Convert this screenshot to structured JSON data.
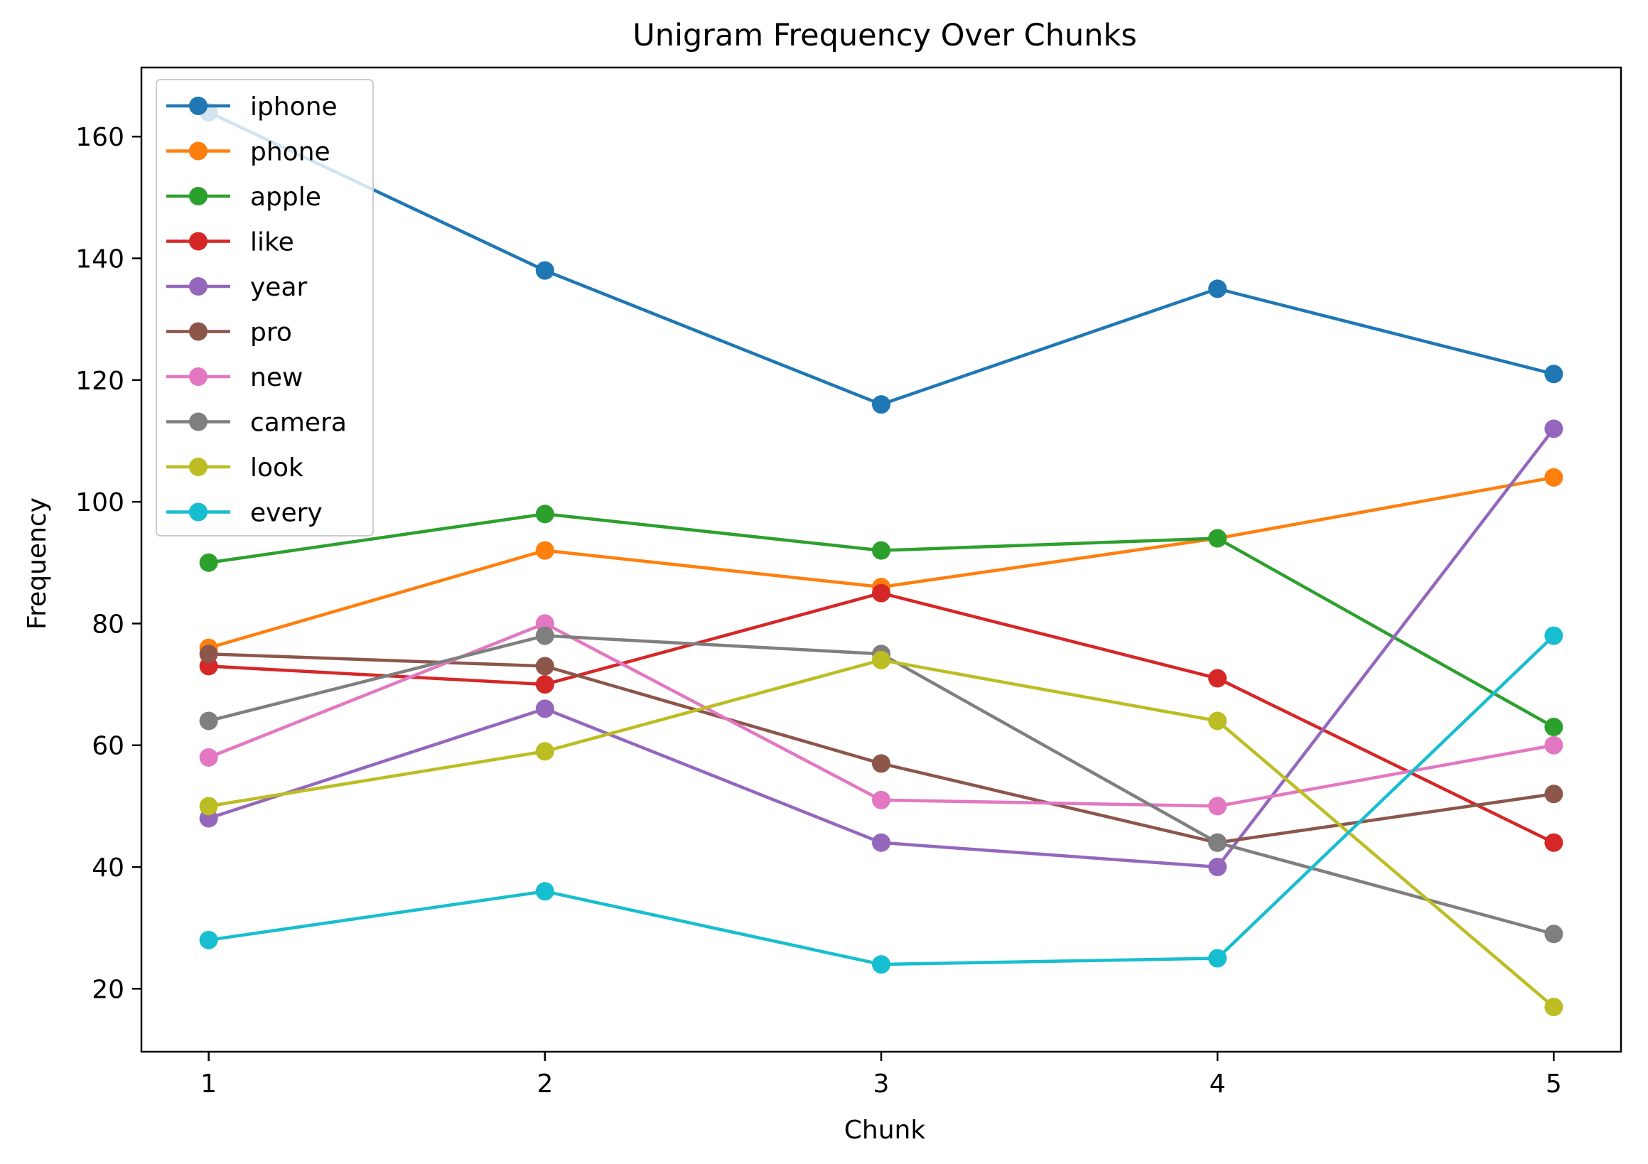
{
  "chart_data": {
    "type": "line",
    "title": "Unigram Frequency Over Chunks",
    "xlabel": "Chunk",
    "ylabel": "Frequency",
    "x": [
      1,
      2,
      3,
      4,
      5
    ],
    "xlim": [
      0.8,
      5.2
    ],
    "ylim": [
      9.65,
      171.35
    ],
    "yticks": [
      20,
      40,
      60,
      80,
      100,
      120,
      140,
      160
    ],
    "grid": false,
    "legend_position": "upper-left",
    "series": [
      {
        "name": "iphone",
        "color": "#1f77b4",
        "values": [
          164,
          138,
          116,
          135,
          121
        ]
      },
      {
        "name": "phone",
        "color": "#ff7f0e",
        "values": [
          76,
          92,
          86,
          94,
          104
        ]
      },
      {
        "name": "apple",
        "color": "#2ca02c",
        "values": [
          90,
          98,
          92,
          94,
          63
        ]
      },
      {
        "name": "like",
        "color": "#d62728",
        "values": [
          73,
          70,
          85,
          71,
          44
        ]
      },
      {
        "name": "year",
        "color": "#9467bd",
        "values": [
          48,
          66,
          44,
          40,
          112
        ]
      },
      {
        "name": "pro",
        "color": "#8c564b",
        "values": [
          75,
          73,
          57,
          44,
          52
        ]
      },
      {
        "name": "new",
        "color": "#e377c2",
        "values": [
          58,
          80,
          51,
          50,
          60
        ]
      },
      {
        "name": "camera",
        "color": "#7f7f7f",
        "values": [
          64,
          78,
          75,
          44,
          29
        ]
      },
      {
        "name": "look",
        "color": "#bcbd22",
        "values": [
          50,
          59,
          74,
          64,
          17
        ]
      },
      {
        "name": "every",
        "color": "#17becf",
        "values": [
          28,
          36,
          24,
          25,
          78
        ]
      }
    ]
  }
}
